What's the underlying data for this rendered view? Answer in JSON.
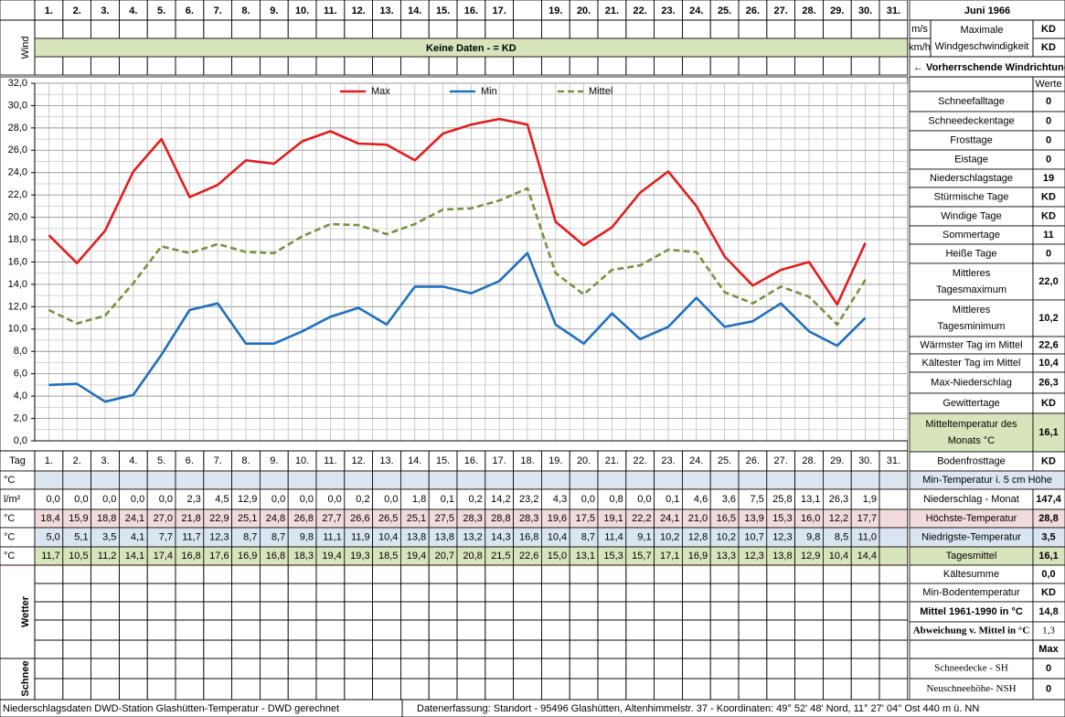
{
  "header": {
    "days": [
      "1.",
      "2.",
      "3.",
      "4.",
      "5.",
      "6.",
      "7.",
      "8.",
      "9.",
      "10.",
      "11.",
      "12.",
      "13.",
      "14.",
      "15.",
      "16.",
      "17.",
      null,
      "19.",
      "20.",
      "21.",
      "22.",
      "23.",
      "24.",
      "25.",
      "26.",
      "27.",
      "28.",
      "29.",
      "30.",
      "31."
    ],
    "wind_label": "Wind",
    "no_data": "Keine Daten -  = KD"
  },
  "chart_data": {
    "type": "line",
    "x_label": "Tag",
    "categories": [
      "1.",
      "2.",
      "3.",
      "4.",
      "5.",
      "6.",
      "7.",
      "8.",
      "9.",
      "10.",
      "11.",
      "12.",
      "13.",
      "14.",
      "15.",
      "16.",
      "17.",
      "18.",
      "19.",
      "20.",
      "21.",
      "22.",
      "23.",
      "24.",
      "25.",
      "26.",
      "27.",
      "28.",
      "29.",
      "30.",
      "31."
    ],
    "series": [
      {
        "name": "Max",
        "color": "#e41c1c",
        "line_style": "solid",
        "values": [
          18.4,
          15.9,
          18.8,
          24.1,
          27.0,
          21.8,
          22.9,
          25.1,
          24.8,
          26.8,
          27.7,
          26.6,
          26.5,
          25.1,
          27.5,
          28.3,
          28.8,
          28.3,
          19.6,
          17.5,
          19.1,
          22.2,
          24.1,
          21.0,
          16.5,
          13.9,
          15.3,
          16.0,
          12.2,
          17.7,
          null
        ],
        "value_labels": [
          "18,4",
          "15,9",
          "18,8",
          "24,1",
          "27,0",
          "21,8",
          "22,9",
          "25,1",
          "24,8",
          "26,8",
          "27,7",
          "26,6",
          "26,5",
          "25,1",
          "27,5",
          "28,3",
          "28,8",
          "28,3",
          "19,6",
          "17,5",
          "19,1",
          "22,2",
          "24,1",
          "21,0",
          "16,5",
          "13,9",
          "15,3",
          "16,0",
          "12,2",
          "17,7",
          null
        ]
      },
      {
        "name": "Min",
        "color": "#1f6fc0",
        "line_style": "solid",
        "values": [
          5.0,
          5.1,
          3.5,
          4.1,
          7.7,
          11.7,
          12.3,
          8.7,
          8.7,
          9.8,
          11.1,
          11.9,
          10.4,
          13.8,
          13.8,
          13.2,
          14.3,
          16.8,
          10.4,
          8.7,
          11.4,
          9.1,
          10.2,
          12.8,
          10.2,
          10.7,
          12.3,
          9.8,
          8.5,
          11.0,
          null
        ],
        "value_labels": [
          "5,0",
          "5,1",
          "3,5",
          "4,1",
          "7,7",
          "11,7",
          "12,3",
          "8,7",
          "8,7",
          "9,8",
          "11,1",
          "11,9",
          "10,4",
          "13,8",
          "13,8",
          "13,2",
          "14,3",
          "16,8",
          "10,4",
          "8,7",
          "11,4",
          "9,1",
          "10,2",
          "12,8",
          "10,2",
          "10,7",
          "12,3",
          "9,8",
          "8,5",
          "11,0",
          null
        ]
      },
      {
        "name": "Mittel",
        "color": "#76923c",
        "line_style": "dashed",
        "values": [
          11.7,
          10.5,
          11.2,
          14.1,
          17.4,
          16.8,
          17.6,
          16.9,
          16.8,
          18.3,
          19.4,
          19.3,
          18.5,
          19.4,
          20.7,
          20.8,
          21.5,
          22.6,
          15.0,
          13.1,
          15.3,
          15.7,
          17.1,
          16.9,
          13.3,
          12.3,
          13.8,
          12.9,
          10.4,
          14.4,
          null
        ],
        "value_labels": [
          "11,7",
          "10,5",
          "11,2",
          "14,1",
          "17,4",
          "16,8",
          "17,6",
          "16,9",
          "16,8",
          "18,3",
          "19,4",
          "19,3",
          "18,5",
          "19,4",
          "20,7",
          "20,8",
          "21,5",
          "22,6",
          "15,0",
          "13,1",
          "15,3",
          "15,7",
          "17,1",
          "16,9",
          "13,3",
          "12,3",
          "13,8",
          "12,9",
          "10,4",
          "14,4",
          null
        ]
      }
    ],
    "ylim": [
      0,
      32
    ],
    "yticks": [
      {
        "value": 0,
        "label": "0,0"
      },
      {
        "value": 2,
        "label": "2,0"
      },
      {
        "value": 4,
        "label": "4,0"
      },
      {
        "value": 6,
        "label": "6,0"
      },
      {
        "value": 8,
        "label": "8,0"
      },
      {
        "value": 10,
        "label": "10,0"
      },
      {
        "value": 12,
        "label": "12,0"
      },
      {
        "value": 14,
        "label": "14,0"
      },
      {
        "value": 16,
        "label": "16,0"
      },
      {
        "value": 18,
        "label": "18,0"
      },
      {
        "value": 20,
        "label": "20,0"
      },
      {
        "value": 22,
        "label": "22,0"
      },
      {
        "value": 24,
        "label": "24,0"
      },
      {
        "value": 26,
        "label": "26,0"
      },
      {
        "value": 28,
        "label": "28,0"
      },
      {
        "value": 30,
        "label": "30,0"
      },
      {
        "value": 32,
        "label": "32,0"
      }
    ],
    "grid": true
  },
  "table": {
    "row_units": [
      "°C",
      "l/m²",
      "°C",
      "°C",
      "°C"
    ],
    "precipitation": [
      "0,0",
      "0,0",
      "0,0",
      "0,0",
      "0,0",
      "2,3",
      "4,5",
      "12,9",
      "0,0",
      "0,0",
      "0,0",
      "0,2",
      "0,0",
      "1,8",
      "0,1",
      "0,2",
      "14,2",
      "23,2",
      "4,3",
      "0,0",
      "0,8",
      "0,0",
      "0,1",
      "4,6",
      "3,6",
      "7,5",
      "25,8",
      "13,1",
      "26,3",
      "1,9",
      null
    ],
    "weather_label": "Wetter",
    "snow_label": "Schnee"
  },
  "summary": {
    "title": "Juni 1966",
    "unit_ms": "m/s",
    "unit_kmh": "km/h",
    "wind_max_label": [
      "Maximale",
      "Windgeschwindigkeit"
    ],
    "wind_max_ms": "KD",
    "wind_max_kmh": "KD",
    "wind_direction": "← Vorherrschende Windrichtung",
    "values_header": "Werte",
    "stats": [
      {
        "label": [
          "Schneefalltage"
        ],
        "value": "0"
      },
      {
        "label": [
          "Schneedeckentage"
        ],
        "value": "0"
      },
      {
        "label": [
          "Frosttage"
        ],
        "value": "0"
      },
      {
        "label": [
          "Eistage"
        ],
        "value": "0"
      },
      {
        "label": [
          "Niederschlagstage"
        ],
        "value": "19"
      },
      {
        "label": [
          "Stürmische Tage"
        ],
        "value": "KD"
      },
      {
        "label": [
          "Windige Tage"
        ],
        "value": "KD"
      },
      {
        "label": [
          "Sommertage"
        ],
        "value": "11"
      },
      {
        "label": [
          "Heiße Tage"
        ],
        "value": "0"
      },
      {
        "label": [
          "Mittleres",
          "Tagesmaximum"
        ],
        "value": "22,0"
      },
      {
        "label": [
          "Mittleres",
          "Tagesminimum"
        ],
        "value": "10,2"
      },
      {
        "label": [
          "Wärmster Tag im Mittel"
        ],
        "value": "22,6"
      },
      {
        "label": [
          "Kältester Tag im Mittel"
        ],
        "value": "10,4"
      },
      {
        "label": [
          "Max-Niederschlag"
        ],
        "value": "26,3"
      },
      {
        "label": [
          "Gewittertage"
        ],
        "value": "KD"
      },
      {
        "label": [
          "Mitteltemperatur des",
          "Monats °C"
        ],
        "value": "16,1"
      },
      {
        "label": [
          "Bodenfrosttage"
        ],
        "value": "KD"
      }
    ],
    "soil_label": "Min-Temperatur i. 5 cm Höhe",
    "monthly": [
      {
        "label": "Niederschlag - Monat",
        "value": "147,4"
      },
      {
        "label": "Höchste-Temperatur",
        "value": "28,8"
      },
      {
        "label": "Niedrigste-Temperatur",
        "value": "3,5"
      },
      {
        "label": "Tagesmittel",
        "value": "16,1"
      },
      {
        "label": "Kältesumme",
        "value": "0,0"
      },
      {
        "label": "Min-Bodentemperatur",
        "value": "KD"
      },
      {
        "label": "Mittel 1961-1990 in °C",
        "value": "14,8"
      },
      {
        "label": "Abweichung v. Mittel in °C",
        "value": "1,3"
      }
    ],
    "max_header": "Max",
    "snow": [
      {
        "label": "Schneedecke -  SH",
        "value": "0"
      },
      {
        "label": "Neuschneehöhe- NSH",
        "value": "0"
      }
    ]
  },
  "footer": {
    "left": "Niederschlagsdaten DWD-Station Glashütten-Temperatur -  DWD gerechnet",
    "right": "Datenerfassung: Standort - 95496 Glashütten, Altenhimmelstr. 37 - Koordinaten: 49° 52' 48' Nord,  11° 27' 04'' Ost  440 m ü. NN"
  }
}
